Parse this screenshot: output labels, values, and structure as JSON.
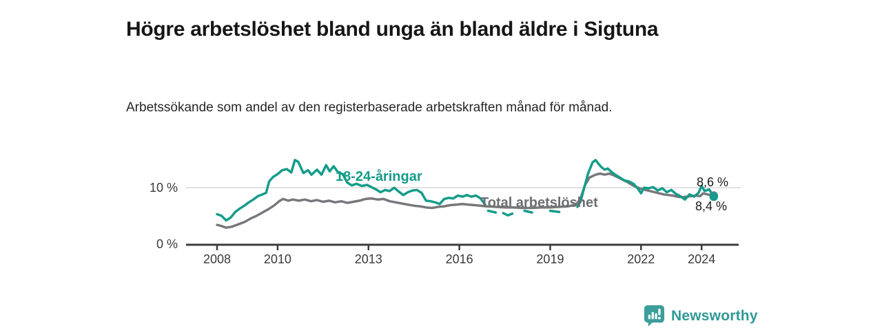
{
  "header": {
    "title": "Högre arbetslöshet bland unga än bland äldre i Sigtuna",
    "subtitle": "Arbetssökande som andel av den registerbaserade arbetskraften månad för månad."
  },
  "colors": {
    "accent_teal": "#149c8a",
    "series_gray": "#77787b",
    "axis": "#3c3c3c",
    "grid": "#d9d9d9",
    "tick_text": "#3a3a3a",
    "brand_teal": "#2f9a96"
  },
  "chart_data": {
    "type": "line",
    "title": "Högre arbetslöshet bland unga än bland äldre i Sigtuna",
    "subtitle": "Arbetssökande som andel av den registerbaserade arbetskraften månad för månad.",
    "unit": "%",
    "x_range": [
      2007.0,
      2025.2
    ],
    "ylim": [
      0,
      16
    ],
    "grid": "horizontal-10-only",
    "legend_position": "inline-labels",
    "x_axis": {
      "ticks": [
        {
          "year": 2008,
          "label": "2008"
        },
        {
          "year": 2010,
          "label": "2010"
        },
        {
          "year": 2013,
          "label": "2013"
        },
        {
          "year": 2016,
          "label": "2016"
        },
        {
          "year": 2019,
          "label": "2019"
        },
        {
          "year": 2022,
          "label": "2022"
        },
        {
          "year": 2024,
          "label": "2024"
        }
      ]
    },
    "y_axis": {
      "ticks": [
        {
          "value": 0,
          "label": "0 %"
        },
        {
          "value": 10,
          "label": "10 %"
        }
      ]
    },
    "series": [
      {
        "name": "Total arbetslöshet",
        "color": "#77787b",
        "end_label": "8,6 %",
        "end_dot": [
          2024.4,
          8.6
        ],
        "segments": [
          [
            [
              2008.0,
              3.4
            ],
            [
              2008.15,
              3.2
            ],
            [
              2008.3,
              2.9
            ],
            [
              2008.5,
              3.1
            ],
            [
              2008.7,
              3.5
            ],
            [
              2008.9,
              3.9
            ],
            [
              2009.1,
              4.5
            ],
            [
              2009.3,
              5.0
            ],
            [
              2009.5,
              5.6
            ],
            [
              2009.7,
              6.2
            ],
            [
              2009.9,
              6.9
            ],
            [
              2010.05,
              7.6
            ],
            [
              2010.18,
              8.0
            ],
            [
              2010.35,
              7.7
            ],
            [
              2010.5,
              7.9
            ],
            [
              2010.7,
              7.7
            ],
            [
              2010.9,
              7.9
            ],
            [
              2011.1,
              7.6
            ],
            [
              2011.3,
              7.8
            ],
            [
              2011.5,
              7.5
            ],
            [
              2011.7,
              7.7
            ],
            [
              2011.9,
              7.4
            ],
            [
              2012.1,
              7.6
            ],
            [
              2012.3,
              7.3
            ],
            [
              2012.5,
              7.5
            ],
            [
              2012.7,
              7.7
            ],
            [
              2012.9,
              8.0
            ],
            [
              2013.1,
              8.1
            ],
            [
              2013.3,
              7.9
            ],
            [
              2013.5,
              8.0
            ],
            [
              2013.7,
              7.6
            ],
            [
              2013.9,
              7.4
            ],
            [
              2014.1,
              7.2
            ],
            [
              2014.3,
              7.0
            ],
            [
              2014.5,
              6.8
            ],
            [
              2014.7,
              6.7
            ],
            [
              2014.9,
              6.5
            ],
            [
              2015.1,
              6.4
            ],
            [
              2015.3,
              6.6
            ],
            [
              2015.5,
              6.7
            ],
            [
              2015.7,
              6.9
            ],
            [
              2015.9,
              7.0
            ],
            [
              2016.1,
              7.1
            ],
            [
              2016.3,
              7.0
            ],
            [
              2016.5,
              6.9
            ],
            [
              2016.7,
              6.8
            ],
            [
              2016.9,
              6.7
            ],
            [
              2017.2,
              6.6
            ],
            [
              2017.5,
              6.5
            ],
            [
              2017.8,
              6.5
            ],
            [
              2018.1,
              6.4
            ],
            [
              2018.4,
              6.4
            ],
            [
              2018.7,
              6.5
            ],
            [
              2019.0,
              6.5
            ],
            [
              2019.3,
              6.6
            ],
            [
              2019.6,
              6.7
            ],
            [
              2019.85,
              7.0
            ],
            [
              2020.0,
              8.0
            ],
            [
              2020.15,
              10.5
            ],
            [
              2020.3,
              11.8
            ],
            [
              2020.5,
              12.3
            ],
            [
              2020.65,
              12.5
            ],
            [
              2020.8,
              12.3
            ],
            [
              2020.95,
              12.5
            ],
            [
              2021.1,
              12.2
            ],
            [
              2021.25,
              11.8
            ],
            [
              2021.4,
              11.4
            ],
            [
              2021.55,
              11.0
            ],
            [
              2021.7,
              10.5
            ],
            [
              2021.85,
              10.1
            ],
            [
              2022.0,
              9.8
            ],
            [
              2022.15,
              9.6
            ],
            [
              2022.3,
              9.4
            ],
            [
              2022.45,
              9.2
            ],
            [
              2022.6,
              9.0
            ],
            [
              2022.75,
              8.8
            ],
            [
              2022.9,
              8.7
            ],
            [
              2023.05,
              8.6
            ],
            [
              2023.2,
              8.4
            ],
            [
              2023.35,
              8.3
            ],
            [
              2023.5,
              8.4
            ],
            [
              2023.65,
              8.5
            ],
            [
              2023.8,
              8.6
            ],
            [
              2023.95,
              8.5
            ],
            [
              2024.05,
              9.0
            ],
            [
              2024.2,
              8.8
            ],
            [
              2024.4,
              8.6
            ]
          ]
        ]
      },
      {
        "name": "18-24-åringar",
        "color": "#149c8a",
        "end_label": "8,4 %",
        "end_dot": [
          2024.4,
          8.4
        ],
        "segments": [
          [
            [
              2008.0,
              5.3
            ],
            [
              2008.15,
              5.0
            ],
            [
              2008.3,
              4.2
            ],
            [
              2008.45,
              4.7
            ],
            [
              2008.6,
              5.7
            ],
            [
              2008.75,
              6.3
            ],
            [
              2008.9,
              6.8
            ],
            [
              2009.05,
              7.4
            ],
            [
              2009.2,
              7.9
            ],
            [
              2009.35,
              8.5
            ],
            [
              2009.5,
              8.8
            ],
            [
              2009.62,
              9.1
            ],
            [
              2009.72,
              11.1
            ],
            [
              2009.85,
              11.9
            ],
            [
              2010.0,
              12.4
            ],
            [
              2010.15,
              13.1
            ],
            [
              2010.3,
              13.3
            ],
            [
              2010.45,
              12.7
            ],
            [
              2010.57,
              14.9
            ],
            [
              2010.68,
              14.6
            ],
            [
              2010.85,
              12.6
            ],
            [
              2011.0,
              13.1
            ],
            [
              2011.12,
              12.3
            ],
            [
              2011.3,
              13.2
            ],
            [
              2011.45,
              12.3
            ],
            [
              2011.6,
              14.0
            ],
            [
              2011.72,
              12.9
            ],
            [
              2011.85,
              13.8
            ],
            [
              2012.0,
              12.7
            ],
            [
              2012.15,
              12.4
            ],
            [
              2012.3,
              10.9
            ],
            [
              2012.45,
              10.4
            ],
            [
              2012.6,
              10.7
            ],
            [
              2012.78,
              10.3
            ],
            [
              2012.95,
              10.5
            ],
            [
              2013.1,
              10.1
            ],
            [
              2013.25,
              9.7
            ],
            [
              2013.4,
              9.2
            ],
            [
              2013.55,
              9.6
            ],
            [
              2013.7,
              9.4
            ],
            [
              2013.85,
              10.0
            ],
            [
              2014.0,
              9.3
            ],
            [
              2014.15,
              8.7
            ],
            [
              2014.3,
              9.2
            ],
            [
              2014.45,
              9.5
            ],
            [
              2014.6,
              9.6
            ],
            [
              2014.75,
              9.1
            ],
            [
              2014.9,
              7.7
            ],
            [
              2015.05,
              7.6
            ],
            [
              2015.2,
              7.4
            ],
            [
              2015.35,
              7.1
            ],
            [
              2015.5,
              8.0
            ],
            [
              2015.65,
              8.2
            ],
            [
              2015.8,
              8.1
            ],
            [
              2015.95,
              8.6
            ],
            [
              2016.1,
              8.4
            ],
            [
              2016.25,
              8.7
            ],
            [
              2016.4,
              8.4
            ],
            [
              2016.55,
              8.6
            ],
            [
              2016.7,
              8.1
            ],
            [
              2016.85,
              7.0
            ]
          ],
          [
            [
              2016.95,
              5.9
            ],
            [
              2017.2,
              5.6
            ]
          ],
          [
            [
              2017.45,
              5.5
            ],
            [
              2017.6,
              5.1
            ],
            [
              2017.75,
              5.4
            ]
          ],
          [
            [
              2018.15,
              5.9
            ],
            [
              2018.4,
              5.6
            ]
          ],
          [
            [
              2019.0,
              5.9
            ],
            [
              2019.3,
              5.7
            ]
          ],
          [
            [
              2019.9,
              6.6
            ],
            [
              2020.0,
              7.5
            ],
            [
              2020.1,
              9.5
            ],
            [
              2020.25,
              12.5
            ],
            [
              2020.4,
              14.5
            ],
            [
              2020.5,
              14.9
            ],
            [
              2020.6,
              14.2
            ],
            [
              2020.7,
              13.6
            ],
            [
              2020.8,
              13.2
            ],
            [
              2020.9,
              13.4
            ],
            [
              2021.0,
              12.9
            ],
            [
              2021.15,
              12.3
            ],
            [
              2021.3,
              11.8
            ],
            [
              2021.45,
              11.3
            ],
            [
              2021.6,
              11.1
            ],
            [
              2021.75,
              10.7
            ],
            [
              2021.9,
              9.8
            ],
            [
              2022.0,
              9.0
            ],
            [
              2022.1,
              10.0
            ],
            [
              2022.25,
              9.9
            ],
            [
              2022.4,
              10.1
            ],
            [
              2022.55,
              9.5
            ],
            [
              2022.7,
              9.9
            ],
            [
              2022.85,
              9.2
            ],
            [
              2023.0,
              9.6
            ],
            [
              2023.15,
              8.9
            ],
            [
              2023.3,
              8.5
            ],
            [
              2023.45,
              7.9
            ],
            [
              2023.6,
              8.8
            ],
            [
              2023.75,
              8.4
            ],
            [
              2023.9,
              9.1
            ],
            [
              2024.0,
              10.3
            ],
            [
              2024.1,
              9.4
            ],
            [
              2024.25,
              9.7
            ],
            [
              2024.4,
              8.4
            ]
          ]
        ]
      }
    ]
  },
  "footer": {
    "brand": "Newsworthy"
  }
}
